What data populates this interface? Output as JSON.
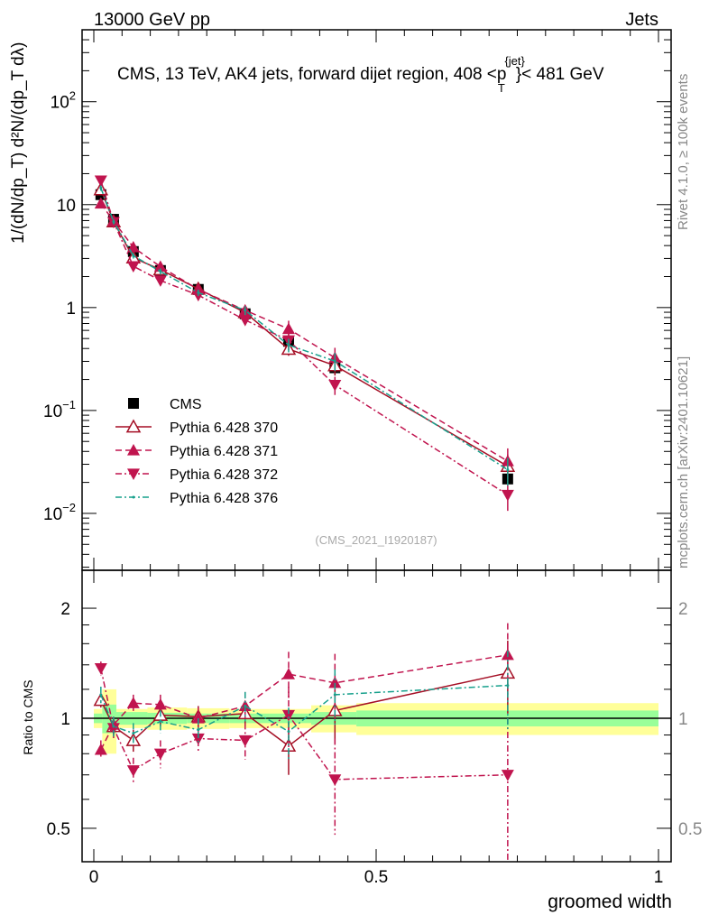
{
  "header": {
    "left": "13000 GeV pp",
    "right": "Jets"
  },
  "side_labels": {
    "rivet": "Rivet 4.1.0, ≥ 100k events",
    "mcplots": "mcplots.cern.ch [arXiv:2401.10621]"
  },
  "watermark": "(CMS_2021_I1920187)",
  "chart_data": {
    "type": "line",
    "title": "CMS, 13 TeV, AK4 jets, forward dijet region, 408 <p_T^{jet}< 481 GeV",
    "title_parts": {
      "main": "CMS, 13 TeV, AK4 jets, forward dijet region, 408 <p",
      "sup": "{jet}",
      "sub": "T",
      "end": "}< 481 GeV"
    },
    "xlabel": "groomed width",
    "ylabel_main": "1/(dN/dp_T) d²N/(dp_T dλ)",
    "ylabel_ratio": "Ratio to CMS",
    "xlim": [
      0,
      1
    ],
    "ylim_main": [
      0.0028,
      500
    ],
    "ylim_ratio": [
      0.405,
      2.54
    ],
    "yscale": "log",
    "x_ticks": [
      {
        "v": 0,
        "label": "0"
      },
      {
        "v": 0.5,
        "label": "0.5"
      },
      {
        "v": 1,
        "label": "1"
      }
    ],
    "y_ticks_main": [
      {
        "v": 0.01,
        "base": "10",
        "exp": "−2"
      },
      {
        "v": 0.1,
        "base": "10",
        "exp": "−1"
      },
      {
        "v": 1,
        "base": "1",
        "exp": ""
      },
      {
        "v": 10,
        "base": "10",
        "exp": ""
      },
      {
        "v": 100,
        "base": "10",
        "exp": "2"
      }
    ],
    "y_ticks_ratio": [
      {
        "v": 0.5,
        "label": "0.5"
      },
      {
        "v": 1,
        "label": "1"
      },
      {
        "v": 2,
        "label": "2"
      }
    ],
    "x": [
      0.0125,
      0.035,
      0.07,
      0.118,
      0.185,
      0.268,
      0.345,
      0.427,
      0.733
    ],
    "bin_edges": [
      0,
      0.015,
      0.04,
      0.095,
      0.165,
      0.24,
      0.31,
      0.385,
      0.465,
      1.0
    ],
    "band_stat": [
      0.03,
      0.09,
      0.04,
      0.035,
      0.03,
      0.03,
      0.03,
      0.04,
      0.05
    ],
    "band_total": [
      0.06,
      0.2,
      0.06,
      0.07,
      0.065,
      0.06,
      0.06,
      0.085,
      0.1
    ],
    "cms": [
      12.5,
      7.2,
      3.5,
      2.29,
      1.5,
      0.87,
      0.47,
      0.26,
      0.0216
    ],
    "legend_position": "middle-left",
    "series": [
      {
        "name": "CMS",
        "key": "cms"
      },
      {
        "name": "Pythia 6.428 370",
        "color": "#a50f25",
        "marker": "open-triangle-up",
        "line": "solid",
        "ratio": [
          1.12,
          0.95,
          0.87,
          1.02,
          1.01,
          1.03,
          0.84,
          1.05,
          1.33
        ],
        "ratio_err": [
          0.05,
          0.05,
          0.06,
          0.07,
          0.07,
          0.08,
          0.14,
          0.2,
          0.3
        ]
      },
      {
        "name": "Pythia 6.428 371",
        "color": "#c0144e",
        "marker": "triangle-up",
        "line": "dashed",
        "ratio": [
          0.82,
          0.96,
          1.1,
          1.09,
          1.0,
          1.08,
          1.32,
          1.25,
          1.49
        ],
        "ratio_err": [
          0.05,
          0.05,
          0.06,
          0.07,
          0.07,
          0.1,
          0.2,
          0.25,
          0.33
        ]
      },
      {
        "name": "Pythia 6.428 372",
        "color": "#c0144e",
        "marker": "triangle-down",
        "line": "dashdot",
        "ratio": [
          1.37,
          0.94,
          0.72,
          0.8,
          0.88,
          0.87,
          1.02,
          0.68,
          0.7
        ],
        "ratio_err": [
          0.06,
          0.06,
          0.06,
          0.07,
          0.07,
          0.1,
          0.2,
          0.2,
          0.3
        ]
      },
      {
        "name": "Pythia 6.428 376",
        "color": "#17a08c",
        "marker": "none",
        "line": "dashdot",
        "ratio": [
          1.16,
          0.95,
          0.91,
          0.98,
          0.93,
          1.08,
          0.92,
          1.16,
          1.23
        ],
        "ratio_err": [
          0.06,
          0.06,
          0.06,
          0.07,
          0.07,
          0.1,
          0.15,
          0.2,
          0.3
        ]
      }
    ]
  }
}
